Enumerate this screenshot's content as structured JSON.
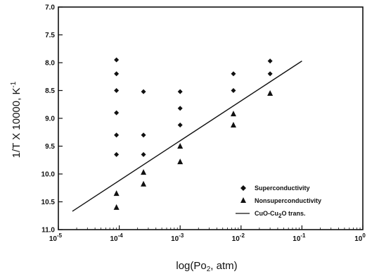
{
  "chart_data": {
    "type": "scatter",
    "xlabel_main": "log(Po",
    "xlabel_sub": "2",
    "xlabel_rest": ", atm)",
    "ylabel": "1/T X 10000, K",
    "ylabel_sup": "-1",
    "x_scale": "log",
    "xlim": [
      1e-05,
      1
    ],
    "ylim": [
      7.0,
      11.0
    ],
    "y_inverted": true,
    "grid": false,
    "legend_position": "bottom-right",
    "x_ticks": [
      {
        "value": 1e-05,
        "base": "10",
        "exp": "-5"
      },
      {
        "value": 0.0001,
        "base": "10",
        "exp": "-4"
      },
      {
        "value": 0.001,
        "base": "10",
        "exp": "-3"
      },
      {
        "value": 0.01,
        "base": "10",
        "exp": "-2"
      },
      {
        "value": 0.1,
        "base": "10",
        "exp": "-1"
      },
      {
        "value": 1,
        "base": "10",
        "exp": "0"
      }
    ],
    "y_ticks": [
      {
        "value": 7.0,
        "label": "7.0"
      },
      {
        "value": 7.5,
        "label": "7.5"
      },
      {
        "value": 8.0,
        "label": "8.0"
      },
      {
        "value": 8.5,
        "label": "8.5"
      },
      {
        "value": 9.0,
        "label": "9.0"
      },
      {
        "value": 9.5,
        "label": "9.5"
      },
      {
        "value": 10.0,
        "label": "10.0"
      },
      {
        "value": 10.5,
        "label": "10.5"
      },
      {
        "value": 11.0,
        "label": "11.0"
      }
    ],
    "series": [
      {
        "name": "Superconductivity",
        "marker": "diamond",
        "points": [
          [
            9e-05,
            7.95
          ],
          [
            9e-05,
            8.2
          ],
          [
            9e-05,
            8.5
          ],
          [
            9e-05,
            8.9
          ],
          [
            9e-05,
            9.3
          ],
          [
            9e-05,
            9.65
          ],
          [
            0.00025,
            8.52
          ],
          [
            0.00025,
            9.3
          ],
          [
            0.00025,
            9.65
          ],
          [
            0.001,
            8.52
          ],
          [
            0.001,
            8.82
          ],
          [
            0.001,
            9.12
          ],
          [
            0.0075,
            8.2
          ],
          [
            0.0075,
            8.5
          ],
          [
            0.03,
            7.97
          ],
          [
            0.03,
            8.2
          ]
        ]
      },
      {
        "name": "Nonsuperconductivity",
        "marker": "triangle",
        "points": [
          [
            9e-05,
            10.35
          ],
          [
            9e-05,
            10.6
          ],
          [
            0.00025,
            9.97
          ],
          [
            0.00025,
            10.18
          ],
          [
            0.001,
            9.5
          ],
          [
            0.001,
            9.78
          ],
          [
            0.0075,
            8.92
          ],
          [
            0.0075,
            9.12
          ],
          [
            0.03,
            8.55
          ]
        ]
      },
      {
        "name_main": "CuO-Cu",
        "name_sub": "2",
        "name_rest": "O trans.",
        "marker": "line",
        "points": [
          [
            1.7e-05,
            10.67
          ],
          [
            0.1,
            7.97
          ]
        ]
      }
    ]
  }
}
